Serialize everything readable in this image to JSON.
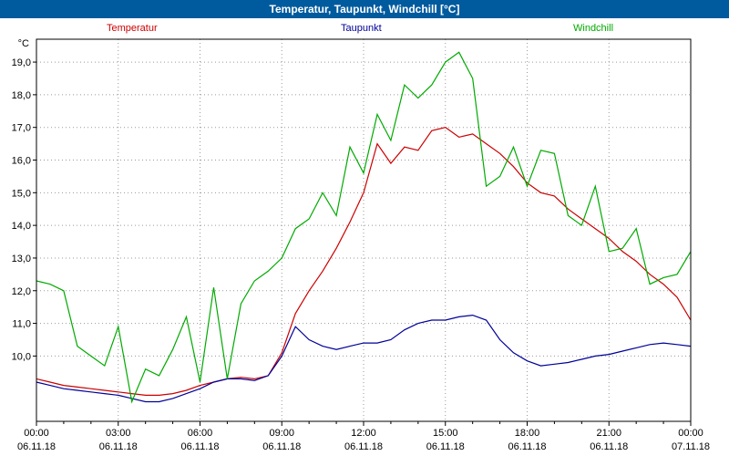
{
  "window": {
    "title": "Temperatur, Taupunkt, Windchill [°C]"
  },
  "colors": {
    "titlebar_bg": "#005a9e",
    "titlebar_text": "#ffffff",
    "temperatur": "#cc0000",
    "taupunkt": "#000099",
    "windchill": "#00aa00"
  },
  "legend": {
    "temperatur": "Temperatur",
    "taupunkt": "Taupunkt",
    "windchill": "Windchill"
  },
  "axis": {
    "unit_label": "°C"
  },
  "chart_data": {
    "type": "line",
    "title": "Temperatur, Taupunkt, Windchill [°C]",
    "xlabel": "",
    "ylabel": "°C",
    "grid": true,
    "legend_position": "top",
    "xlim": [
      0,
      24
    ],
    "ylim": [
      8.0,
      19.7
    ],
    "x_unit": "hours since 00:00 06.11.18",
    "x_start_hour": 0,
    "x_step_hours": 0.5,
    "y_ticks": [
      {
        "value": 19,
        "label": "19,0"
      },
      {
        "value": 18,
        "label": "18,0"
      },
      {
        "value": 17,
        "label": "17,0"
      },
      {
        "value": 16,
        "label": "16,0"
      },
      {
        "value": 15,
        "label": "15,0"
      },
      {
        "value": 14,
        "label": "14,0"
      },
      {
        "value": 13,
        "label": "13,0"
      },
      {
        "value": 12,
        "label": "12,0"
      },
      {
        "value": 11,
        "label": "11,0"
      },
      {
        "value": 10,
        "label": "10,0"
      }
    ],
    "x_ticks": [
      {
        "hour": 0,
        "time": "00:00",
        "date": "06.11.18"
      },
      {
        "hour": 3,
        "time": "03:00",
        "date": "06.11.18"
      },
      {
        "hour": 6,
        "time": "06:00",
        "date": "06.11.18"
      },
      {
        "hour": 9,
        "time": "09:00",
        "date": "06.11.18"
      },
      {
        "hour": 12,
        "time": "12:00",
        "date": "06.11.18"
      },
      {
        "hour": 15,
        "time": "15:00",
        "date": "06.11.18"
      },
      {
        "hour": 18,
        "time": "18:00",
        "date": "06.11.18"
      },
      {
        "hour": 21,
        "time": "21:00",
        "date": "06.11.18"
      },
      {
        "hour": 24,
        "time": "00:00",
        "date": "07.11.18"
      }
    ],
    "series": [
      {
        "name": "Temperatur",
        "color": "#cc0000",
        "values": [
          9.3,
          9.2,
          9.1,
          9.05,
          9.0,
          8.95,
          8.9,
          8.85,
          8.8,
          8.8,
          8.85,
          8.95,
          9.1,
          9.2,
          9.3,
          9.35,
          9.3,
          9.4,
          10.1,
          11.3,
          12.0,
          12.6,
          13.3,
          14.1,
          15.0,
          16.5,
          15.9,
          16.4,
          16.3,
          16.9,
          17.0,
          16.7,
          16.8,
          16.5,
          16.2,
          15.8,
          15.3,
          15.0,
          14.9,
          14.5,
          14.2,
          13.9,
          13.6,
          13.2,
          12.9,
          12.5,
          12.2,
          11.8,
          11.1
        ]
      },
      {
        "name": "Taupunkt",
        "color": "#000099",
        "values": [
          9.2,
          9.1,
          9.0,
          8.95,
          8.9,
          8.85,
          8.8,
          8.7,
          8.6,
          8.6,
          8.7,
          8.85,
          9.0,
          9.2,
          9.3,
          9.3,
          9.25,
          9.4,
          10.0,
          10.9,
          10.5,
          10.3,
          10.2,
          10.3,
          10.4,
          10.4,
          10.5,
          10.8,
          11.0,
          11.1,
          11.1,
          11.2,
          11.25,
          11.1,
          10.5,
          10.1,
          9.85,
          9.7,
          9.75,
          9.8,
          9.9,
          10.0,
          10.05,
          10.15,
          10.25,
          10.35,
          10.4,
          10.35,
          10.3
        ]
      },
      {
        "name": "Windchill",
        "color": "#00aa00",
        "values": [
          12.3,
          12.2,
          12.0,
          10.3,
          10.0,
          9.7,
          10.9,
          8.6,
          9.6,
          9.4,
          10.2,
          11.2,
          9.2,
          12.1,
          9.3,
          11.6,
          12.3,
          12.6,
          13.0,
          13.9,
          14.2,
          15.0,
          14.3,
          16.4,
          15.6,
          17.4,
          16.6,
          18.3,
          17.9,
          18.3,
          19.0,
          19.3,
          18.5,
          15.2,
          15.5,
          16.4,
          15.2,
          16.3,
          16.2,
          14.3,
          14.0,
          15.2,
          13.2,
          13.3,
          13.9,
          12.2,
          12.4,
          12.5,
          13.2
        ]
      }
    ]
  }
}
